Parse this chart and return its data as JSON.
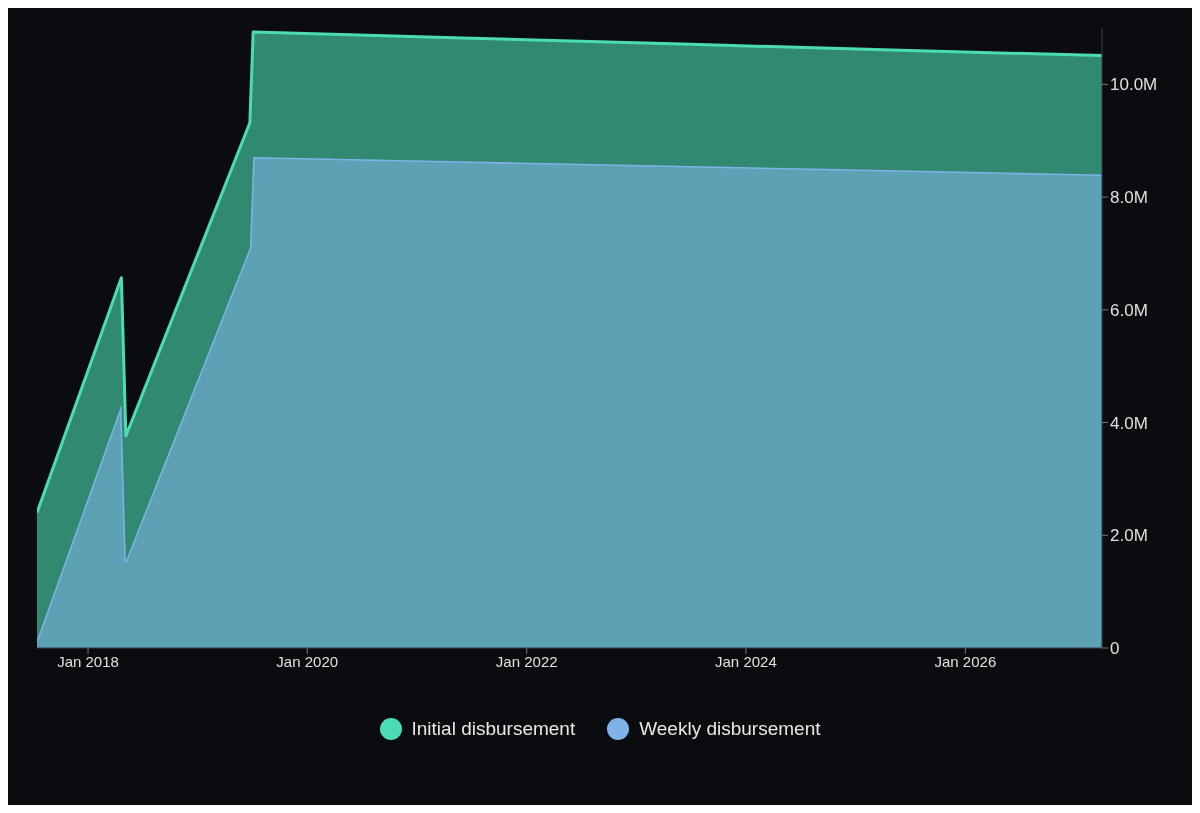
{
  "chart_data": {
    "type": "area",
    "stacked": true,
    "x": [
      "2017-07-15",
      "2018-04-22",
      "2018-05-07",
      "2019-06-24",
      "2019-07-05",
      "2021-07-01",
      "2023-07-01",
      "2025-07-01",
      "2027-04-01"
    ],
    "series": [
      {
        "name": "Weekly disbursement",
        "color": "#7fb3e8",
        "values": [
          140000,
          4310000,
          1550000,
          7100000,
          8710000,
          8630000,
          8550000,
          8470000,
          8400000
        ]
      },
      {
        "name": "Initial disbursement",
        "color": "#4bdcb4",
        "values": [
          2260000,
          2260000,
          2210000,
          2220000,
          2220000,
          2190000,
          2160000,
          2130000,
          2110000
        ]
      }
    ],
    "xlim": [
      "2017-07-15",
      "2027-04-01"
    ],
    "xticks": [
      {
        "value": "2018-01-01",
        "label": "Jan 2018"
      },
      {
        "value": "2020-01-01",
        "label": "Jan 2020"
      },
      {
        "value": "2022-01-01",
        "label": "Jan 2022"
      },
      {
        "value": "2024-01-01",
        "label": "Jan 2024"
      },
      {
        "value": "2026-01-01",
        "label": "Jan 2026"
      }
    ],
    "ylim": [
      0,
      11000000
    ],
    "yticks": [
      0,
      {
        "value": 2000000,
        "label": "2.0M"
      },
      {
        "value": 4000000,
        "label": "4.0M"
      },
      {
        "value": 6000000,
        "label": "6.0M"
      },
      {
        "value": 8000000,
        "label": "8.0M"
      },
      {
        "value": 10000000,
        "label": "10.0M"
      }
    ],
    "grid": false,
    "legend": "bottom"
  }
}
